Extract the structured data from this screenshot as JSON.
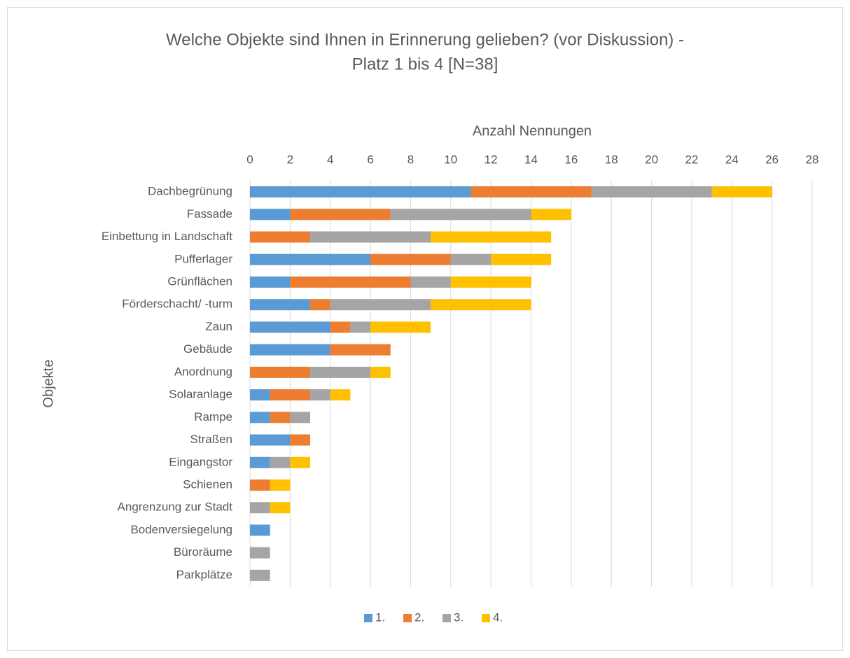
{
  "chart_data": {
    "type": "stacked-bar-horizontal",
    "title": [
      "Welche Objekte sind Ihnen in Erinnerung gelieben? (vor Diskussion) -",
      "Platz 1 bis 4 [N=38]"
    ],
    "x_label": "Anzahl Nennungen",
    "y_label": "Objekte",
    "x_axis_position": "top",
    "grid": true,
    "legend": "bottom",
    "xlim": [
      0,
      28
    ],
    "xticks": [
      0,
      2,
      4,
      6,
      8,
      10,
      12,
      14,
      16,
      18,
      20,
      22,
      24,
      26,
      28
    ],
    "categories": [
      "Dachbegrünung",
      "Fassade",
      "Einbettung in Landschaft",
      "Pufferlager",
      "Grünflächen",
      "Förderschacht/ -turm",
      "Zaun",
      "Gebäude",
      "Anordnung",
      "Solaranlage",
      "Rampe",
      "Straßen",
      "Eingangstor",
      "Schienen",
      "Angrenzung zur Stadt",
      "Bodenversiegelung",
      "Büroräume",
      "Parkplätze"
    ],
    "series": [
      {
        "name": "1.",
        "color": "#5b9bd5",
        "values": [
          11,
          2,
          0,
          6,
          2,
          3,
          4,
          4,
          0,
          1,
          1,
          2,
          1,
          0,
          0,
          1,
          0,
          0
        ]
      },
      {
        "name": "2.",
        "color": "#ed7d31",
        "values": [
          6,
          5,
          3,
          4,
          6,
          1,
          1,
          3,
          3,
          2,
          1,
          1,
          0,
          1,
          0,
          0,
          0,
          0
        ]
      },
      {
        "name": "3.",
        "color": "#a5a5a5",
        "values": [
          6,
          7,
          6,
          2,
          2,
          5,
          1,
          0,
          3,
          1,
          1,
          0,
          1,
          0,
          1,
          0,
          1,
          1
        ]
      },
      {
        "name": "4.",
        "color": "#ffc000",
        "values": [
          3,
          2,
          6,
          3,
          4,
          5,
          3,
          0,
          1,
          1,
          0,
          0,
          1,
          1,
          1,
          0,
          0,
          0
        ]
      }
    ]
  }
}
